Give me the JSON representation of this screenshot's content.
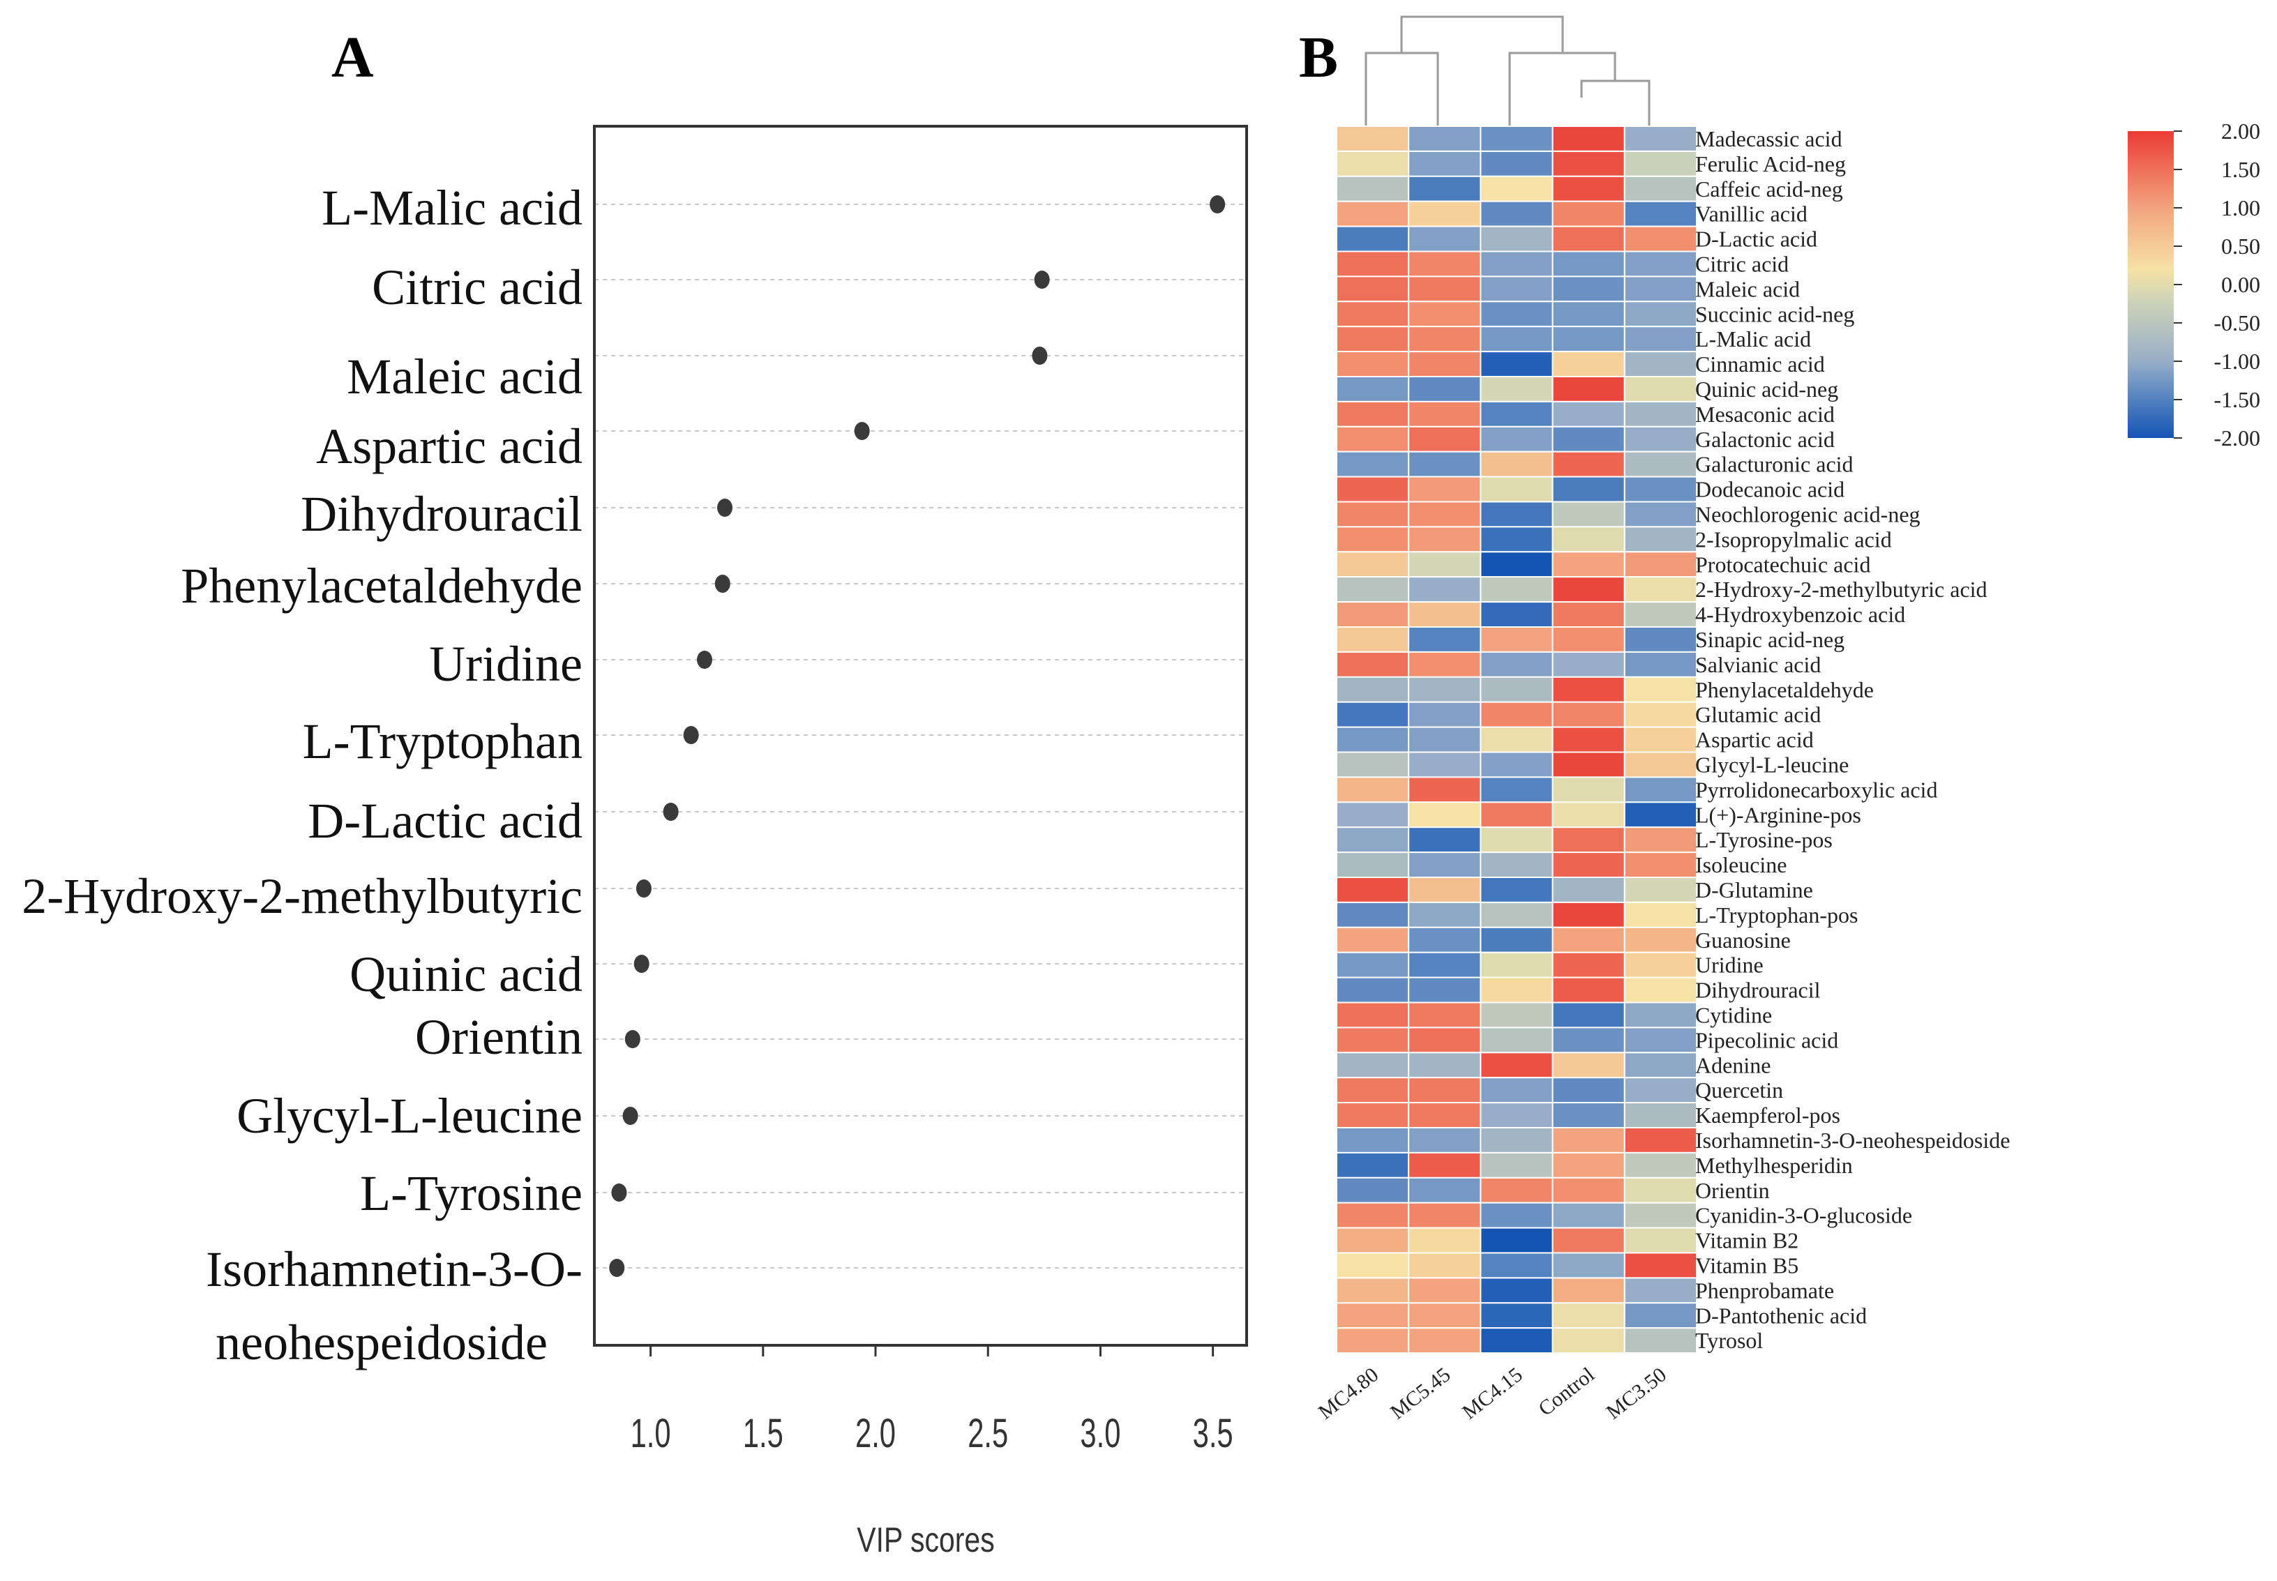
{
  "panels": {
    "a_label": "A",
    "b_label": "B"
  },
  "colors": {
    "dot": "#3a3a3a",
    "frame": "#333333",
    "grid": "#c8c8c8",
    "scale": [
      "#1455b4",
      "#4f7fbf",
      "#98aec8",
      "#cfd4b8",
      "#f6e2a4",
      "#f3a47e",
      "#ea3b33"
    ]
  },
  "chart_data": [
    {
      "type": "scatter",
      "title": "",
      "xlabel": "VIP scores",
      "ylabel": "",
      "xlim": [
        0.75,
        3.65
      ],
      "xticks": [
        "1.0",
        "1.5",
        "2.0",
        "2.5",
        "3.0",
        "3.5"
      ],
      "xtick_values": [
        1.0,
        1.5,
        2.0,
        2.5,
        3.0,
        3.5
      ],
      "grid": "horizontal dotted",
      "metabolites": [
        [
          "L-Malic acid"
        ],
        [
          "Citric acid"
        ],
        [
          "Maleic acid"
        ],
        [
          "Aspartic acid"
        ],
        [
          "Dihydrouracil"
        ],
        [
          "Phenylacetaldehyde"
        ],
        [
          "Uridine"
        ],
        [
          "L-Tryptophan"
        ],
        [
          "D-Lactic acid"
        ],
        [
          "2-Hydroxy-2-methylbutyric"
        ],
        [
          "Quinic acid"
        ],
        [
          "Orientin"
        ],
        [
          "Glycyl-L-leucine"
        ],
        [
          "L-Tyrosine"
        ],
        [
          "Isorhamnetin-3-O-",
          "neohespeidoside"
        ]
      ],
      "values": [
        3.52,
        2.74,
        2.73,
        1.94,
        1.33,
        1.32,
        1.24,
        1.18,
        1.09,
        0.97,
        0.96,
        0.92,
        0.91,
        0.86,
        0.85
      ]
    },
    {
      "type": "heatmap",
      "title": "",
      "columns": [
        "MC4.80",
        "MC5.45",
        "MC4.15",
        "Control",
        "MC3.50"
      ],
      "dendrogram": "((MC4.80,MC5.45),(MC4.15,(Control,MC3.50)))",
      "rows": [
        "Madecassic acid",
        "Ferulic Acid-neg",
        "Caffeic acid-neg",
        "Vanillic acid",
        "D-Lactic acid",
        "Citric acid",
        "Maleic acid",
        "Succinic acid-neg",
        "L-Malic acid",
        "Cinnamic acid",
        "Quinic acid-neg",
        "Mesaconic acid",
        "Galactonic acid",
        "Galacturonic acid",
        "Dodecanoic acid",
        "Neochlorogenic acid-neg",
        "2-Isopropylmalic acid",
        "Protocatechuic acid",
        "2-Hydroxy-2-methylbutyric acid",
        "4-Hydroxybenzoic acid",
        "Sinapic acid-neg",
        "Salvianic acid",
        "Phenylacetaldehyde",
        "Glutamic acid",
        "Aspartic acid",
        "Glycyl-L-leucine",
        "Pyrrolidonecarboxylic acid",
        "L(+)-Arginine-pos",
        "L-Tyrosine-pos",
        "Isoleucine",
        "D-Glutamine",
        "L-Tryptophan-pos",
        "Guanosine",
        "Uridine",
        "Dihydrouracil",
        "Cytidine",
        "Pipecolinic acid",
        "Adenine",
        "Quercetin",
        "Kaempferol-pos",
        "Isorhamnetin-3-O-neohespeidoside",
        "Methylhesperidin",
        "Orientin",
        "Cyanidin-3-O-glucoside",
        "Vitamin B2",
        "Vitamin B5",
        "Phenprobamate",
        "D-Pantothenic acid",
        "Tyrosol"
      ],
      "values": [
        [
          0.6,
          -0.8,
          -1.0,
          1.9,
          -0.6
        ],
        [
          0.2,
          -0.8,
          -1.1,
          1.8,
          -0.1
        ],
        [
          -0.3,
          -1.3,
          0.3,
          1.8,
          -0.3
        ],
        [
          1.0,
          0.5,
          -1.1,
          1.3,
          -1.2
        ],
        [
          -1.3,
          -0.8,
          -0.5,
          1.5,
          1.2
        ],
        [
          1.5,
          1.3,
          -0.8,
          -0.9,
          -0.8
        ],
        [
          1.5,
          1.4,
          -0.8,
          -1.0,
          -0.8
        ],
        [
          1.4,
          1.2,
          -1.0,
          -0.9,
          -0.7
        ],
        [
          1.4,
          1.3,
          -0.9,
          -0.9,
          -0.8
        ],
        [
          1.2,
          1.3,
          -1.8,
          0.5,
          -0.5
        ],
        [
          -0.9,
          -1.1,
          0.0,
          1.9,
          0.1
        ],
        [
          1.4,
          1.3,
          -1.2,
          -0.6,
          -0.5
        ],
        [
          1.2,
          1.5,
          -0.8,
          -1.1,
          -0.6
        ],
        [
          -0.9,
          -1.0,
          0.7,
          1.6,
          -0.4
        ],
        [
          1.6,
          1.1,
          0.1,
          -1.3,
          -1.0
        ],
        [
          1.3,
          1.2,
          -1.4,
          -0.2,
          -0.8
        ],
        [
          1.2,
          1.1,
          -1.5,
          0.1,
          -0.5
        ],
        [
          0.6,
          0.0,
          -2.0,
          1.0,
          1.1
        ],
        [
          -0.3,
          -0.6,
          -0.2,
          1.9,
          0.2
        ],
        [
          1.1,
          0.7,
          -1.6,
          1.4,
          -0.2
        ],
        [
          0.6,
          -1.2,
          1.0,
          1.2,
          -1.1
        ],
        [
          1.5,
          1.2,
          -0.8,
          -0.6,
          -0.9
        ],
        [
          -0.5,
          -0.5,
          -0.4,
          1.8,
          0.3
        ],
        [
          -1.4,
          -0.8,
          1.3,
          1.3,
          0.4
        ],
        [
          -0.9,
          -0.8,
          0.2,
          1.8,
          0.5
        ],
        [
          -0.3,
          -0.6,
          -0.8,
          1.9,
          0.6
        ],
        [
          0.8,
          1.6,
          -1.2,
          0.1,
          -0.9
        ],
        [
          -0.6,
          0.3,
          1.4,
          0.2,
          -1.8
        ],
        [
          -0.7,
          -1.5,
          0.1,
          1.5,
          1.1
        ],
        [
          -0.4,
          -0.8,
          -0.5,
          1.6,
          1.2
        ],
        [
          1.8,
          0.7,
          -1.4,
          -0.5,
          0.0
        ],
        [
          -1.1,
          -0.7,
          -0.3,
          1.9,
          0.3
        ],
        [
          1.0,
          -1.0,
          -1.3,
          1.0,
          0.8
        ],
        [
          -0.9,
          -1.2,
          0.1,
          1.6,
          0.5
        ],
        [
          -1.1,
          -1.1,
          0.4,
          1.7,
          0.3
        ],
        [
          1.5,
          1.4,
          -0.2,
          -1.4,
          -0.7
        ],
        [
          1.4,
          1.5,
          -0.3,
          -1.0,
          -0.8
        ],
        [
          -0.5,
          -0.5,
          1.8,
          0.6,
          -0.7
        ],
        [
          1.4,
          1.4,
          -0.8,
          -1.1,
          -0.6
        ],
        [
          1.4,
          1.4,
          -0.6,
          -1.0,
          -0.4
        ],
        [
          -0.9,
          -0.8,
          -0.5,
          1.0,
          1.7
        ],
        [
          -1.5,
          1.7,
          -0.3,
          1.0,
          -0.2
        ],
        [
          -1.1,
          -0.9,
          1.3,
          1.2,
          0.1
        ],
        [
          1.3,
          1.3,
          -1.0,
          -0.7,
          -0.2
        ],
        [
          0.9,
          0.4,
          -2.0,
          1.4,
          0.1
        ],
        [
          0.3,
          0.5,
          -1.2,
          -0.7,
          1.8
        ],
        [
          0.8,
          1.0,
          -1.8,
          0.9,
          -0.6
        ],
        [
          1.0,
          1.0,
          -1.7,
          0.2,
          -0.9
        ],
        [
          1.0,
          1.0,
          -1.9,
          0.2,
          -0.3
        ]
      ],
      "colorbar": {
        "range": [
          -2.0,
          2.0
        ],
        "ticks": [
          "2.00",
          "1.50",
          "1.00",
          "0.50",
          "0.00",
          "-0.50",
          "-1.00",
          "-1.50",
          "-2.00"
        ],
        "tick_values": [
          2.0,
          1.5,
          1.0,
          0.5,
          0.0,
          -0.5,
          -1.0,
          -1.5,
          -2.0
        ]
      }
    }
  ]
}
